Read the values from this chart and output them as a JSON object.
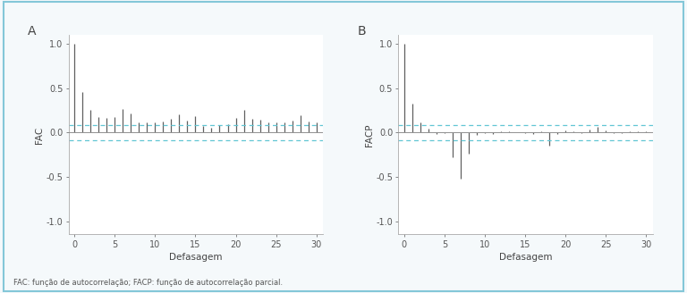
{
  "panel_A_label": "A",
  "panel_B_label": "B",
  "ylabel_A": "FAC",
  "ylabel_B": "FACP",
  "xlabel": "Defasagem",
  "ylim": [
    -1.15,
    1.1
  ],
  "yticks": [
    -1.0,
    -0.5,
    0.0,
    0.5,
    1.0
  ],
  "ytick_labels": [
    "-1.0",
    "-0.5",
    "0.0",
    "0.5",
    "1.0"
  ],
  "xticks": [
    0,
    5,
    10,
    15,
    20,
    25,
    30
  ],
  "ci_upper": 0.085,
  "ci_lower": -0.085,
  "bar_color": "#606060",
  "ci_color": "#62c6d4",
  "zero_line_color": "#909090",
  "bg_color": "#f5f9fb",
  "plot_bg_color": "#ffffff",
  "outer_border_color": "#84c7d8",
  "footnote": "FAC: função de autocorrelação; FACP: função de autocorrelação parcial.",
  "acf_values": [
    1.0,
    0.46,
    0.26,
    0.18,
    0.17,
    0.18,
    0.27,
    0.22,
    0.12,
    0.11,
    0.12,
    0.13,
    0.16,
    0.21,
    0.14,
    0.19,
    0.07,
    0.05,
    0.08,
    0.09,
    0.17,
    0.26,
    0.16,
    0.15,
    0.12,
    0.12,
    0.12,
    0.14,
    0.2,
    0.13,
    0.11
  ],
  "pacf_values": [
    1.0,
    0.33,
    0.11,
    0.04,
    -0.02,
    -0.01,
    -0.28,
    -0.52,
    -0.24,
    -0.03,
    -0.01,
    -0.02,
    0.01,
    0.01,
    0.0,
    -0.01,
    -0.02,
    0.01,
    -0.15,
    -0.02,
    0.02,
    0.01,
    -0.01,
    0.03,
    0.06,
    0.02,
    -0.01,
    -0.01,
    0.01,
    0.01,
    0.01
  ],
  "fig_width": 7.68,
  "fig_height": 3.28,
  "dpi": 100
}
